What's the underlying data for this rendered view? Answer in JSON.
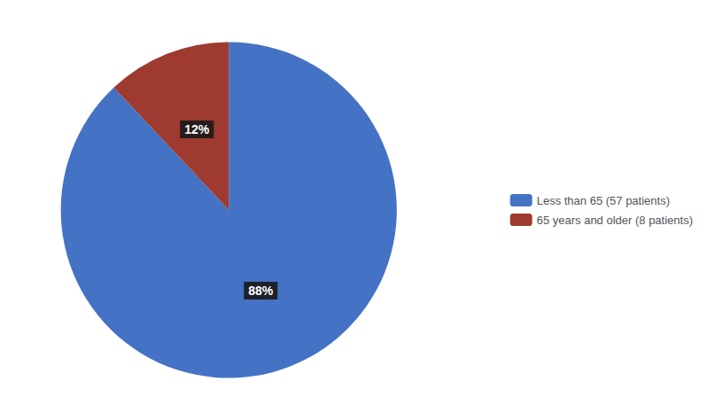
{
  "chart_data": {
    "type": "pie",
    "categories": [
      "Less than 65 (57 patients)",
      "65 years and older (8 patients)"
    ],
    "values": [
      88,
      12
    ],
    "value_labels": [
      "88%",
      "12%"
    ],
    "colors": [
      "#4472C4",
      "#9E3A2F"
    ],
    "data_labels": true,
    "legend": "right"
  }
}
